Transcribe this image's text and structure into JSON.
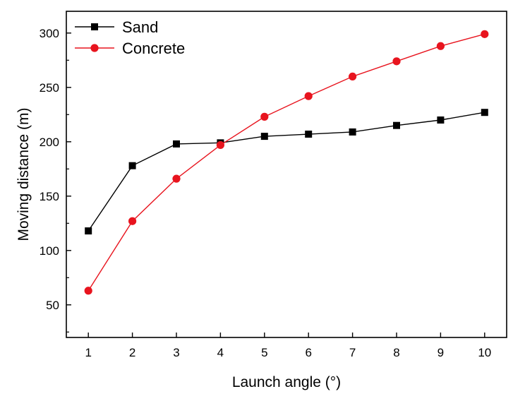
{
  "chart_data": {
    "type": "line",
    "xlabel": "Launch angle (°)",
    "ylabel": "Moving distance (m)",
    "x": [
      1,
      2,
      3,
      4,
      5,
      6,
      7,
      8,
      9,
      10
    ],
    "xlim": [
      0.5,
      10.5
    ],
    "ylim": [
      20,
      320
    ],
    "xticks": [
      1,
      2,
      3,
      4,
      5,
      6,
      7,
      8,
      9,
      10
    ],
    "yticks": [
      50,
      100,
      150,
      200,
      250,
      300
    ],
    "grid": false,
    "legend": {
      "placement": "top-left"
    },
    "series": [
      {
        "name": "Sand",
        "color": "#000000",
        "marker": "square",
        "values": [
          118,
          178,
          198,
          199,
          205,
          207,
          209,
          215,
          220,
          227
        ]
      },
      {
        "name": "Concrete",
        "color": "#e8141e",
        "marker": "circle",
        "values": [
          63,
          127,
          166,
          197,
          223,
          242,
          260,
          274,
          288,
          299
        ]
      }
    ]
  }
}
